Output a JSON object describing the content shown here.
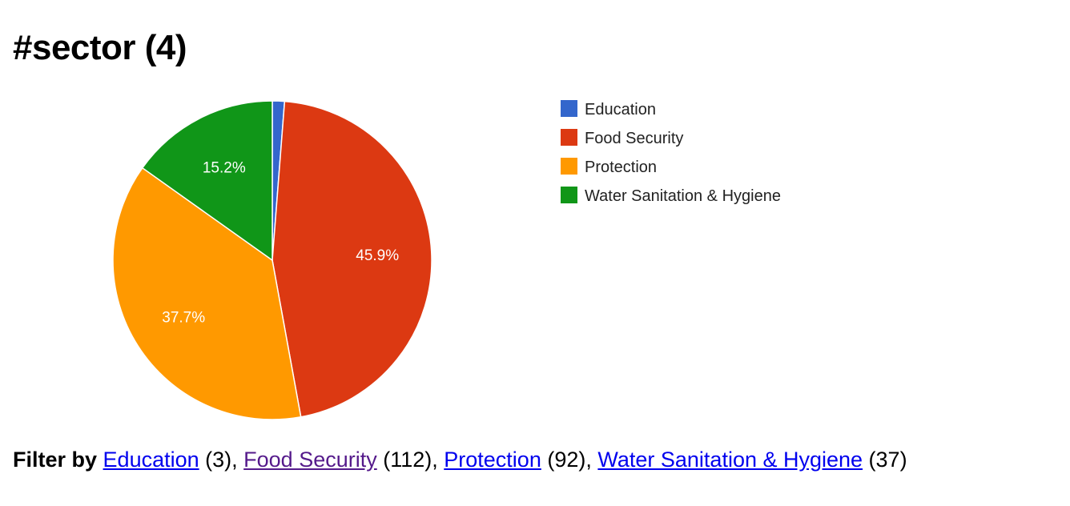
{
  "page": {
    "title": "#sector (4)"
  },
  "chart_data": {
    "type": "pie",
    "categories": [
      "Education",
      "Food Security",
      "Protection",
      "Water Sanitation & Hygiene"
    ],
    "values": [
      3,
      112,
      92,
      37
    ],
    "percent_labels": [
      "",
      "45.9%",
      "37.7%",
      "15.2%"
    ],
    "colors": [
      "#3366cc",
      "#dc3912",
      "#ff9900",
      "#109618"
    ],
    "legend_position": "right"
  },
  "filter": {
    "label": "Filter by",
    "items": [
      {
        "name": "Education",
        "count": "(3)",
        "visited": false
      },
      {
        "name": "Food Security",
        "count": "(112)",
        "visited": true
      },
      {
        "name": "Protection",
        "count": "(92)",
        "visited": false
      },
      {
        "name": "Water Sanitation & Hygiene",
        "count": "(37)",
        "visited": false
      }
    ]
  }
}
